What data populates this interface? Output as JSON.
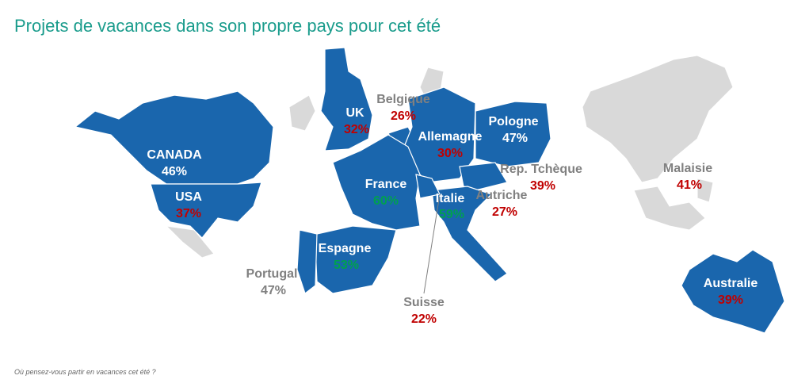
{
  "title": "Projets de vacances dans son propre pays pour cet été",
  "regions": [
    {
      "name": "CANADA",
      "share": "46%"
    },
    {
      "name": "USA",
      "share": "37%"
    },
    {
      "name": "UK",
      "share": "32%"
    },
    {
      "name": "Belgique",
      "share": "26%"
    },
    {
      "name": "Allemagne",
      "share": "30%"
    },
    {
      "name": "Pologne",
      "share": "47%"
    },
    {
      "name": "France",
      "share": "60%"
    },
    {
      "name": "Rep. Tchèque",
      "share": "39%"
    },
    {
      "name": "Italie",
      "share": "59%"
    },
    {
      "name": "Autriche",
      "share": "27%"
    },
    {
      "name": "Espagne",
      "share": "53%"
    },
    {
      "name": "Portugal",
      "share": "47%"
    },
    {
      "name": "Suisse",
      "share": "22%"
    },
    {
      "name": "Malaisie",
      "share": "41%"
    },
    {
      "name": "Australie",
      "share": "39%"
    }
  ],
  "footnote": "Où pensez-vous partir en vacances cet été ?"
}
